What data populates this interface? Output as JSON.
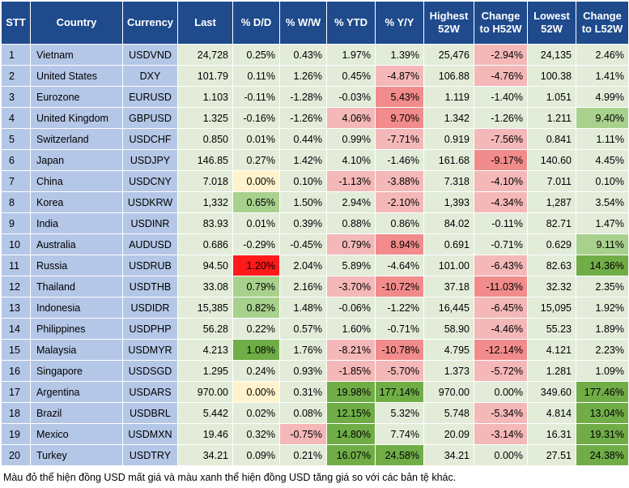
{
  "header": [
    "STT",
    "Country",
    "Currency",
    "Last",
    "% D/D",
    "% W/W",
    "% YTD",
    "% Y/Y",
    "Highest 52W",
    "Change to H52W",
    "Lowest 52W",
    "Change to L52W"
  ],
  "colors": {
    "header_bg": "#1f4a8c",
    "label_bg": "#b4c7e7",
    "neutral": "#e2ecd9",
    "light_green": "#a9d18e",
    "green": "#70ad47",
    "light_red": "#f4b8b8",
    "red": "#f28b8b",
    "dark_red": "#ff1a1a",
    "pale_yellow": "#fff2cc"
  },
  "rows": [
    {
      "stt": "1",
      "country": "Vietnam",
      "currency": "USDVND",
      "last": "24,728",
      "dd": "0.25%",
      "ww": "0.43%",
      "ytd": "1.97%",
      "yy": "1.39%",
      "h52": "25,476",
      "ch52": "-2.94%",
      "l52": "24,135",
      "cl52": "2.46%",
      "bg": {
        "dd": "neutral",
        "ww": "neutral",
        "ytd": "neutral",
        "yy": "neutral",
        "ch52": "light_red",
        "cl52": "neutral"
      }
    },
    {
      "stt": "2",
      "country": "United States",
      "currency": "DXY",
      "last": "101.79",
      "dd": "0.11%",
      "ww": "1.26%",
      "ytd": "0.45%",
      "yy": "-4.87%",
      "h52": "106.88",
      "ch52": "-4.76%",
      "l52": "100.38",
      "cl52": "1.41%",
      "bg": {
        "dd": "neutral",
        "ww": "neutral",
        "ytd": "neutral",
        "yy": "light_red",
        "ch52": "light_red",
        "cl52": "neutral"
      }
    },
    {
      "stt": "3",
      "country": "Eurozone",
      "currency": "EURUSD",
      "last": "1.103",
      "dd": "-0.11%",
      "ww": "-1.28%",
      "ytd": "-0.03%",
      "yy": "5.43%",
      "h52": "1.119",
      "ch52": "-1.40%",
      "l52": "1.051",
      "cl52": "4.99%",
      "bg": {
        "dd": "neutral",
        "ww": "neutral",
        "ytd": "neutral",
        "yy": "red",
        "ch52": "neutral",
        "cl52": "neutral"
      }
    },
    {
      "stt": "4",
      "country": "United Kingdom",
      "currency": "GBPUSD",
      "last": "1.325",
      "dd": "-0.16%",
      "ww": "-1.26%",
      "ytd": "4.06%",
      "yy": "9.70%",
      "h52": "1.342",
      "ch52": "-1.26%",
      "l52": "1.211",
      "cl52": "9.40%",
      "bg": {
        "dd": "neutral",
        "ww": "neutral",
        "ytd": "light_red",
        "yy": "red",
        "ch52": "neutral",
        "cl52": "light_green"
      }
    },
    {
      "stt": "5",
      "country": "Switzerland",
      "currency": "USDCHF",
      "last": "0.850",
      "dd": "0.01%",
      "ww": "0.44%",
      "ytd": "0.99%",
      "yy": "-7.71%",
      "h52": "0.919",
      "ch52": "-7.56%",
      "l52": "0.841",
      "cl52": "1.11%",
      "bg": {
        "dd": "neutral",
        "ww": "neutral",
        "ytd": "neutral",
        "yy": "light_red",
        "ch52": "light_red",
        "cl52": "neutral"
      }
    },
    {
      "stt": "6",
      "country": "Japan",
      "currency": "USDJPY",
      "last": "146.85",
      "dd": "0.27%",
      "ww": "1.42%",
      "ytd": "4.10%",
      "yy": "-1.46%",
      "h52": "161.68",
      "ch52": "-9.17%",
      "l52": "140.60",
      "cl52": "4.45%",
      "bg": {
        "dd": "neutral",
        "ww": "neutral",
        "ytd": "neutral",
        "yy": "neutral",
        "ch52": "red",
        "cl52": "neutral"
      }
    },
    {
      "stt": "7",
      "country": "China",
      "currency": "USDCNY",
      "last": "7.018",
      "dd": "0.00%",
      "ww": "0.10%",
      "ytd": "-1.13%",
      "yy": "-3.88%",
      "h52": "7.318",
      "ch52": "-4.10%",
      "l52": "7.011",
      "cl52": "0.10%",
      "bg": {
        "dd": "pale_yellow",
        "ww": "neutral",
        "ytd": "light_red",
        "yy": "light_red",
        "ch52": "light_red",
        "cl52": "neutral"
      }
    },
    {
      "stt": "8",
      "country": "Korea",
      "currency": "USDKRW",
      "last": "1,332",
      "dd": "0.65%",
      "ww": "1.50%",
      "ytd": "2.94%",
      "yy": "-2.10%",
      "h52": "1,393",
      "ch52": "-4.34%",
      "l52": "1,287",
      "cl52": "3.54%",
      "bg": {
        "dd": "light_green",
        "ww": "neutral",
        "ytd": "neutral",
        "yy": "light_red",
        "ch52": "light_red",
        "cl52": "neutral"
      }
    },
    {
      "stt": "9",
      "country": "India",
      "currency": "USDINR",
      "last": "83.93",
      "dd": "0.01%",
      "ww": "0.39%",
      "ytd": "0.88%",
      "yy": "0.86%",
      "h52": "84.02",
      "ch52": "-0.11%",
      "l52": "82.71",
      "cl52": "1.47%",
      "bg": {
        "dd": "neutral",
        "ww": "neutral",
        "ytd": "neutral",
        "yy": "neutral",
        "ch52": "neutral",
        "cl52": "neutral"
      }
    },
    {
      "stt": "10",
      "country": "Australia",
      "currency": "AUDUSD",
      "last": "0.686",
      "dd": "-0.29%",
      "ww": "-0.45%",
      "ytd": "0.79%",
      "yy": "8.94%",
      "h52": "0.691",
      "ch52": "-0.71%",
      "l52": "0.629",
      "cl52": "9.11%",
      "bg": {
        "dd": "neutral",
        "ww": "neutral",
        "ytd": "light_red",
        "yy": "red",
        "ch52": "neutral",
        "cl52": "light_green"
      }
    },
    {
      "stt": "11",
      "country": "Russia",
      "currency": "USDRUB",
      "last": "94.50",
      "dd": "1.20%",
      "ww": "2.04%",
      "ytd": "5.89%",
      "yy": "-4.64%",
      "h52": "101.00",
      "ch52": "-6.43%",
      "l52": "82.63",
      "cl52": "14.36%",
      "bg": {
        "dd": "dark_red",
        "ww": "neutral",
        "ytd": "neutral",
        "yy": "neutral",
        "ch52": "light_red",
        "cl52": "green"
      }
    },
    {
      "stt": "12",
      "country": "Thailand",
      "currency": "USDTHB",
      "last": "33.08",
      "dd": "0.79%",
      "ww": "2.16%",
      "ytd": "-3.70%",
      "yy": "-10.72%",
      "h52": "37.18",
      "ch52": "-11.03%",
      "l52": "32.32",
      "cl52": "2.35%",
      "bg": {
        "dd": "light_green",
        "ww": "neutral",
        "ytd": "light_red",
        "yy": "red",
        "ch52": "red",
        "cl52": "neutral"
      }
    },
    {
      "stt": "13",
      "country": "Indonesia",
      "currency": "USDIDR",
      "last": "15,385",
      "dd": "0.82%",
      "ww": "1.48%",
      "ytd": "-0.06%",
      "yy": "-1.22%",
      "h52": "16,445",
      "ch52": "-6.45%",
      "l52": "15,095",
      "cl52": "1.92%",
      "bg": {
        "dd": "light_green",
        "ww": "neutral",
        "ytd": "neutral",
        "yy": "neutral",
        "ch52": "light_red",
        "cl52": "neutral"
      }
    },
    {
      "stt": "14",
      "country": "Philippines",
      "currency": "USDPHP",
      "last": "56.28",
      "dd": "0.22%",
      "ww": "0.57%",
      "ytd": "1.60%",
      "yy": "-0.71%",
      "h52": "58.90",
      "ch52": "-4.46%",
      "l52": "55.23",
      "cl52": "1.89%",
      "bg": {
        "dd": "neutral",
        "ww": "neutral",
        "ytd": "neutral",
        "yy": "neutral",
        "ch52": "light_red",
        "cl52": "neutral"
      }
    },
    {
      "stt": "15",
      "country": "Malaysia",
      "currency": "USDMYR",
      "last": "4.213",
      "dd": "1.08%",
      "ww": "1.76%",
      "ytd": "-8.21%",
      "yy": "-10.78%",
      "h52": "4.795",
      "ch52": "-12.14%",
      "l52": "4.121",
      "cl52": "2.23%",
      "bg": {
        "dd": "green",
        "ww": "neutral",
        "ytd": "light_red",
        "yy": "red",
        "ch52": "red",
        "cl52": "neutral"
      }
    },
    {
      "stt": "16",
      "country": "Singapore",
      "currency": "USDSGD",
      "last": "1.295",
      "dd": "0.24%",
      "ww": "0.93%",
      "ytd": "-1.85%",
      "yy": "-5.70%",
      "h52": "1.373",
      "ch52": "-5.72%",
      "l52": "1.281",
      "cl52": "1.09%",
      "bg": {
        "dd": "neutral",
        "ww": "neutral",
        "ytd": "light_red",
        "yy": "light_red",
        "ch52": "light_red",
        "cl52": "neutral"
      }
    },
    {
      "stt": "17",
      "country": "Argentina",
      "currency": "USDARS",
      "last": "970.00",
      "dd": "0.00%",
      "ww": "0.31%",
      "ytd": "19.98%",
      "yy": "177.14%",
      "h52": "970.00",
      "ch52": "0.00%",
      "l52": "349.60",
      "cl52": "177.46%",
      "bg": {
        "dd": "pale_yellow",
        "ww": "neutral",
        "ytd": "green",
        "yy": "green",
        "ch52": "neutral",
        "cl52": "green"
      }
    },
    {
      "stt": "18",
      "country": "Brazil",
      "currency": "USDBRL",
      "last": "5.442",
      "dd": "0.02%",
      "ww": "0.08%",
      "ytd": "12.15%",
      "yy": "5.32%",
      "h52": "5.748",
      "ch52": "-5.34%",
      "l52": "4.814",
      "cl52": "13.04%",
      "bg": {
        "dd": "neutral",
        "ww": "neutral",
        "ytd": "green",
        "yy": "neutral",
        "ch52": "light_red",
        "cl52": "green"
      }
    },
    {
      "stt": "19",
      "country": "Mexico",
      "currency": "USDMXN",
      "last": "19.46",
      "dd": "0.32%",
      "ww": "-0.75%",
      "ytd": "14.80%",
      "yy": "7.74%",
      "h52": "20.09",
      "ch52": "-3.14%",
      "l52": "16.31",
      "cl52": "19.31%",
      "bg": {
        "dd": "neutral",
        "ww": "light_red",
        "ytd": "green",
        "yy": "neutral",
        "ch52": "light_red",
        "cl52": "green"
      }
    },
    {
      "stt": "20",
      "country": "Turkey",
      "currency": "USDTRY",
      "last": "34.21",
      "dd": "0.09%",
      "ww": "0.21%",
      "ytd": "16.07%",
      "yy": "24.58%",
      "h52": "34.21",
      "ch52": "0.00%",
      "l52": "27.51",
      "cl52": "24.38%",
      "bg": {
        "dd": "neutral",
        "ww": "neutral",
        "ytd": "green",
        "yy": "green",
        "ch52": "neutral",
        "cl52": "green"
      }
    }
  ],
  "footnote": "Màu đỏ thể hiện đồng USD mất giá và màu xanh thể hiện đồng USD tăng giá so với các bản tệ khác."
}
